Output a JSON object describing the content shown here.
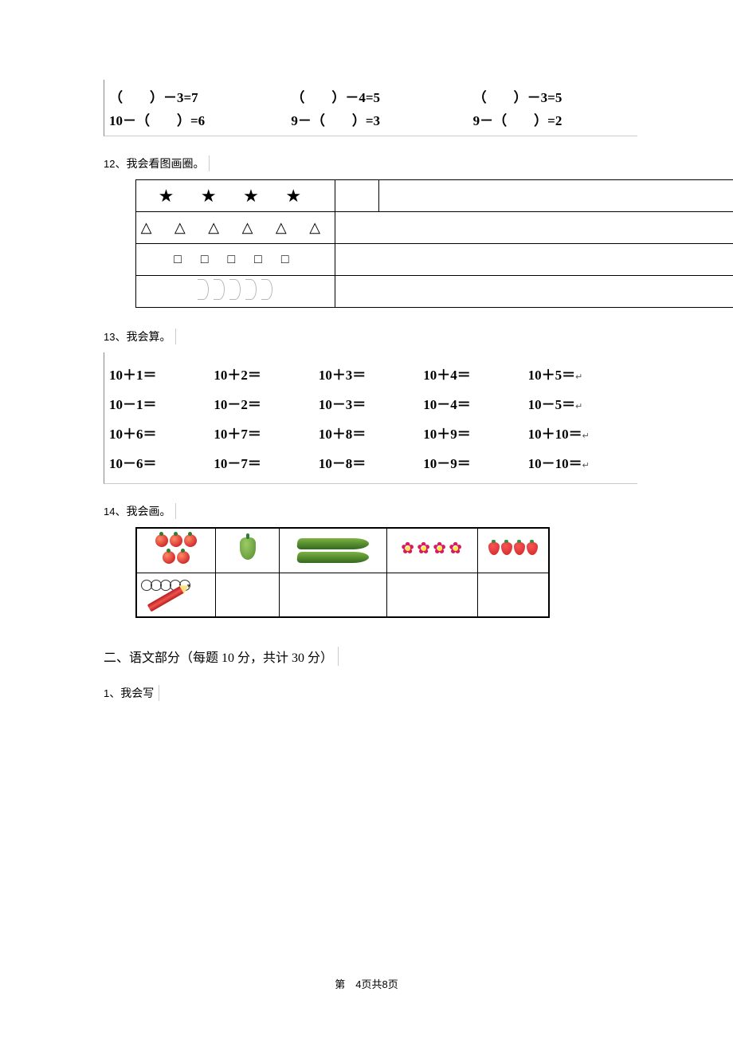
{
  "eq_box": {
    "row1": [
      "（　　）－3=7",
      "（　　）－4=5",
      "（　　）－3=5"
    ],
    "row2": [
      "10－（　　）=6",
      "9－（　　）=3",
      "9－（　　）=2"
    ]
  },
  "q12": {
    "num": "12",
    "label": "、我会看图画圈。"
  },
  "tbl12": {
    "row1": "★ ★ ★ ★",
    "row2": "△ △ △ △ △ △",
    "row3": "□ □ □ □ □",
    "leaves_count": 5
  },
  "q13": {
    "num": "13",
    "label": "、我会算。"
  },
  "calc": {
    "rows": [
      [
        "10＋1＝",
        "10＋2＝",
        "10＋3＝",
        "10＋4＝",
        "10＋5＝"
      ],
      [
        "10－1＝",
        "10－2＝",
        "10－3＝",
        "10－4＝",
        "10－5＝"
      ],
      [
        "10＋6＝",
        "10＋7＝",
        "10＋8＝",
        "10＋9＝",
        "10＋10＝"
      ],
      [
        "10－6＝",
        "10－7＝",
        "10－8＝",
        "10－9＝",
        "10－10＝"
      ]
    ]
  },
  "q14": {
    "num": "14",
    "label": "、我会画。"
  },
  "tbl14": {
    "tomatoes": 5,
    "cucumbers": 2,
    "flowers": 4,
    "berries": 4,
    "circles": 5
  },
  "section2": "二、语文部分（每题 10 分，共计 30 分）",
  "q2_1": {
    "num": "1",
    "label": "、我会写"
  },
  "footer": {
    "prefix": "第　",
    "page": "4",
    "mid": "页共",
    "total": "8",
    "suffix": "页"
  }
}
